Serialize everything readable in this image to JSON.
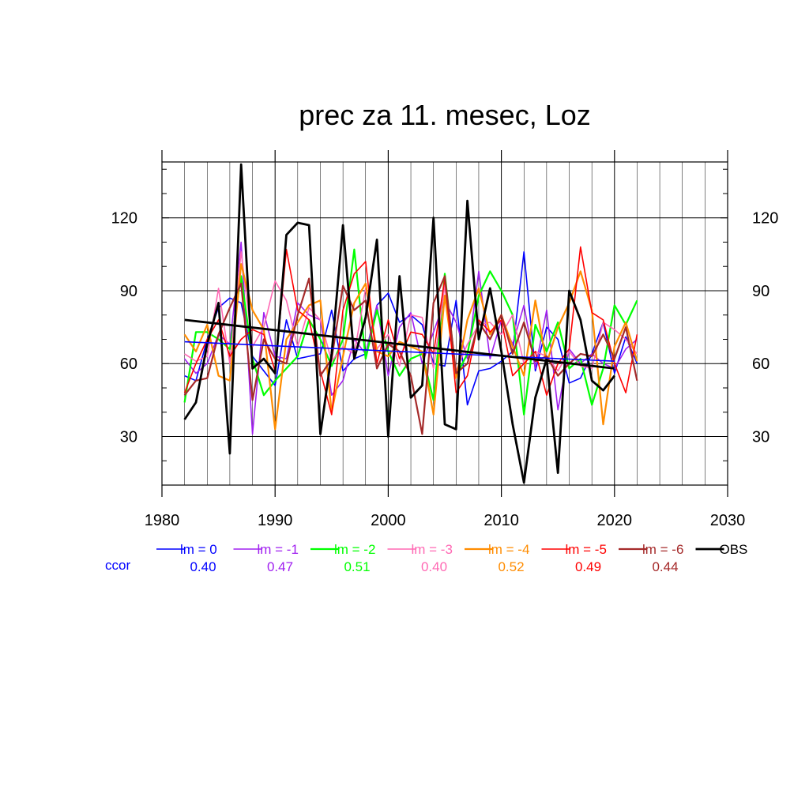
{
  "chart_data": {
    "type": "line",
    "title": "prec za 11. mesec, Loz",
    "xlabel": "",
    "ylabel": "",
    "xlim": [
      1980,
      2030
    ],
    "ylim": [
      10,
      143
    ],
    "x_ticks": [
      "1980",
      "1990",
      "2000",
      "2010",
      "2020",
      "2030"
    ],
    "y_ticks": [
      "30",
      "60",
      "90",
      "120"
    ],
    "grid": true,
    "legend_position": "below",
    "ccor_label": "ccor",
    "x_start": 1982,
    "series": [
      {
        "name": "lm = 0",
        "color": "#0000ff",
        "width": 1.6,
        "ccor": "0.40",
        "values": [
          55,
          53,
          70,
          83,
          87,
          85,
          63,
          57,
          51,
          78,
          62,
          63,
          64,
          82,
          57,
          62,
          64,
          84,
          89,
          77,
          80,
          76,
          60,
          59,
          86,
          43,
          57,
          58,
          61,
          65,
          106,
          57,
          75,
          70,
          52,
          54,
          64,
          77,
          56,
          71,
          60
        ]
      },
      {
        "name": "lm = -1",
        "color": "#a020f0",
        "width": 1.6,
        "ccor": "0.47",
        "values": [
          62,
          56,
          60,
          72,
          68,
          110,
          31,
          81,
          63,
          62,
          85,
          80,
          78,
          47,
          53,
          70,
          64,
          84,
          55,
          75,
          81,
          60,
          73,
          86,
          77,
          62,
          98,
          62,
          78,
          68,
          84,
          58,
          82,
          41,
          66,
          60,
          64,
          60,
          58,
          66,
          70
        ]
      },
      {
        "name": "lm = -2",
        "color": "#00ff00",
        "width": 2.2,
        "ccor": "0.51",
        "values": [
          44,
          73,
          73,
          70,
          66,
          96,
          62,
          47,
          53,
          58,
          63,
          78,
          70,
          59,
          70,
          107,
          62,
          82,
          65,
          55,
          62,
          64,
          45,
          97,
          55,
          64,
          88,
          98,
          90,
          80,
          39,
          76,
          65,
          77,
          58,
          62,
          43,
          58,
          84,
          76,
          86
        ]
      },
      {
        "name": "lm = -3",
        "color": "#ff69b4",
        "width": 1.6,
        "ccor": "0.40",
        "values": [
          64,
          61,
          63,
          91,
          60,
          106,
          67,
          75,
          94,
          86,
          67,
          83,
          78,
          61,
          67,
          64,
          91,
          66,
          72,
          59,
          80,
          79,
          58,
          92,
          57,
          68,
          76,
          77,
          72,
          80,
          60,
          65,
          63,
          57,
          65,
          59,
          58,
          77,
          74,
          70,
          64
        ]
      },
      {
        "name": "lm = -4",
        "color": "#ff8c00",
        "width": 2.2,
        "ccor": "0.52",
        "values": [
          72,
          65,
          76,
          55,
          53,
          101,
          82,
          74,
          33,
          70,
          77,
          84,
          86,
          40,
          63,
          85,
          93,
          65,
          63,
          69,
          67,
          65,
          39,
          88,
          54,
          78,
          91,
          72,
          80,
          67,
          55,
          86,
          60,
          75,
          85,
          98,
          82,
          35,
          67,
          77,
          61
        ]
      },
      {
        "name": "lm = -5",
        "color": "#ff0000",
        "width": 1.6,
        "ccor": "0.49",
        "values": [
          48,
          60,
          70,
          78,
          63,
          70,
          74,
          72,
          57,
          107,
          82,
          78,
          57,
          39,
          82,
          97,
          102,
          60,
          78,
          62,
          73,
          72,
          64,
          95,
          48,
          55,
          78,
          73,
          78,
          55,
          60,
          65,
          47,
          60,
          66,
          108,
          81,
          78,
          60,
          48,
          72
        ]
      },
      {
        "name": "lm = -6",
        "color": "#a52a2a",
        "width": 2.2,
        "ccor": "0.44",
        "values": [
          47,
          53,
          54,
          72,
          83,
          93,
          45,
          70,
          62,
          60,
          80,
          95,
          55,
          62,
          92,
          82,
          86,
          58,
          68,
          65,
          55,
          31,
          85,
          96,
          56,
          60,
          77,
          70,
          80,
          64,
          77,
          61,
          63,
          55,
          60,
          64,
          63,
          72,
          62,
          75,
          53
        ]
      },
      {
        "name": "OBS",
        "color": "#000000",
        "width": 2.8,
        "ccor": "",
        "values": [
          37,
          44,
          68,
          85,
          23,
          142,
          58,
          62,
          56,
          113,
          118,
          117,
          31,
          64,
          117,
          62,
          79,
          111,
          30,
          96,
          46,
          51,
          120,
          35,
          33,
          127,
          70,
          91,
          65,
          35,
          11,
          46,
          62,
          15,
          90,
          78,
          53,
          49,
          55,
          null
        ]
      }
    ],
    "trend_lines": [
      {
        "color": "#0000ff",
        "width": 1.6,
        "x": [
          1982,
          2020
        ],
        "y": [
          69,
          61
        ]
      },
      {
        "color": "#000000",
        "width": 2.8,
        "x": [
          1982,
          2020
        ],
        "y": [
          78,
          58
        ]
      }
    ]
  }
}
